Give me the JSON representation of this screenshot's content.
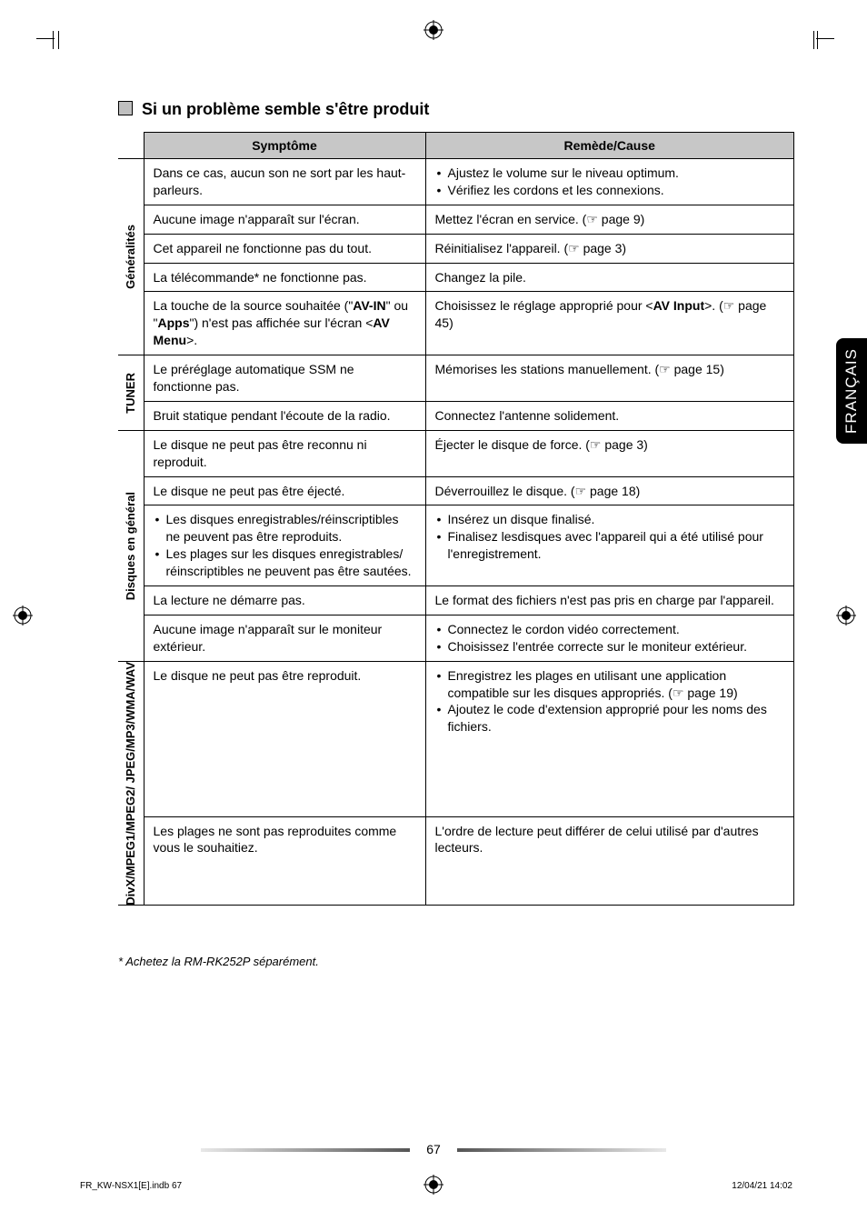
{
  "section_title": "Si un problème semble s'être produit",
  "table": {
    "headers": {
      "symptom": "Symptôme",
      "remedy": "Remède/Cause"
    },
    "groups": [
      {
        "label": "Généralités",
        "rows": [
          {
            "symptom": "Dans ce cas, aucun son ne sort par les haut-parleurs.",
            "remedy_list": [
              "Ajustez le volume sur le niveau optimum.",
              "Vérifiez les cordons et les connexions."
            ]
          },
          {
            "symptom": "Aucune image n'apparaît sur l'écran.",
            "remedy": "Mettez l'écran en service. (☞ page 9)"
          },
          {
            "symptom": "Cet appareil ne fonctionne pas du tout.",
            "remedy": "Réinitialisez l'appareil. (☞ page 3)"
          },
          {
            "symptom": "La télécommande* ne fonctionne pas.",
            "remedy": "Changez la pile."
          },
          {
            "symptom_html": "La touche de la source souhaitée (\"<b>AV-IN</b>\" ou \"<b>Apps</b>\") n'est pas affichée sur l'écran <<b>AV Menu</b>>.",
            "remedy_html": "Choisissez le réglage approprié pour <<b>AV Input</b>>. (☞ page 45)"
          }
        ]
      },
      {
        "label": "TUNER",
        "rows": [
          {
            "symptom": "Le préréglage automatique SSM ne fonctionne pas.",
            "remedy": "Mémorises les stations manuellement. (☞ page 15)"
          },
          {
            "symptom": "Bruit statique pendant l'écoute de la radio.",
            "remedy": "Connectez l'antenne solidement."
          }
        ]
      },
      {
        "label": "Disques en général",
        "rows": [
          {
            "symptom": "Le disque ne peut pas être reconnu ni reproduit.",
            "remedy": "Éjecter le disque de force. (☞ page 3)"
          },
          {
            "symptom": "Le disque ne peut pas être éjecté.",
            "remedy": "Déverrouillez le disque. (☞ page 18)"
          },
          {
            "symptom_list": [
              "Les disques enregistrables/réinscriptibles ne peuvent pas être reproduits.",
              "Les plages sur les disques enregistrables/ réinscriptibles ne peuvent pas être sautées."
            ],
            "remedy_list": [
              "Insérez un disque finalisé.",
              "Finalisez lesdisques avec l'appareil qui a été utilisé pour l'enregistrement."
            ]
          },
          {
            "symptom": "La lecture ne démarre pas.",
            "remedy": "Le format des fichiers n'est pas pris en charge par l'appareil."
          },
          {
            "symptom": "Aucune image n'apparaît sur le moniteur extérieur.",
            "remedy_list": [
              "Connectez le cordon vidéo correctement.",
              "Choisissez l'entrée correcte sur le moniteur extérieur."
            ]
          }
        ]
      },
      {
        "label": "DivX/MPEG1/MPEG2/\nJPEG/MP3/WMA/WAV",
        "rows": [
          {
            "symptom": "Le disque ne peut pas être reproduit.",
            "remedy_list": [
              "Enregistrez les plages en utilisant une application compatible sur les disques appropriés. (☞ page 19)",
              "Ajoutez le code d'extension approprié pour les noms des fichiers."
            ]
          },
          {
            "symptom": "Les plages ne sont pas reproduites comme vous le souhaitiez.",
            "remedy": "L'ordre de lecture peut différer de celui utilisé par d'autres lecteurs."
          }
        ]
      }
    ]
  },
  "footnote": "* Achetez la RM-RK252P séparément.",
  "side_tab": "FRANÇAIS",
  "page_number": "67",
  "footer": {
    "left": "FR_KW-NSX1[E].indb   67",
    "right": "12/04/21   14:02"
  },
  "colors": {
    "header_bg": "#c7c7c7",
    "bullet_box": "#bfbfbf",
    "side_tab_bg": "#000000",
    "side_tab_fg": "#ffffff",
    "text": "#000000"
  },
  "col_widths": {
    "rot": "28px",
    "symptom": "310px",
    "remedy": "auto"
  }
}
